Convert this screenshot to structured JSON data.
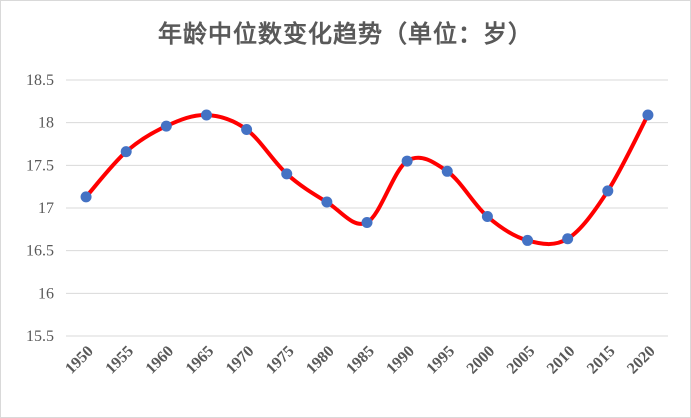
{
  "chart_data": {
    "type": "line",
    "title": "年龄中位数变化趋势（单位：岁）",
    "xlabel": "",
    "ylabel": "",
    "x": [
      "1950",
      "1955",
      "1960",
      "1965",
      "1970",
      "1975",
      "1980",
      "1985",
      "1990",
      "1995",
      "2000",
      "2005",
      "2010",
      "2015",
      "2020"
    ],
    "series": [
      {
        "values": [
          17.13,
          17.66,
          17.96,
          18.09,
          17.92,
          17.4,
          17.07,
          16.83,
          17.55,
          17.43,
          16.9,
          16.62,
          16.64,
          17.2,
          18.09
        ]
      }
    ],
    "yticks": [
      "15.5",
      "16",
      "16.5",
      "17",
      "17.5",
      "18",
      "18.5"
    ],
    "ylim": [
      15.5,
      18.5
    ],
    "grid": "horizontal",
    "line_color": "#ff0000",
    "marker_color": "#4472c4",
    "smooth": true
  }
}
